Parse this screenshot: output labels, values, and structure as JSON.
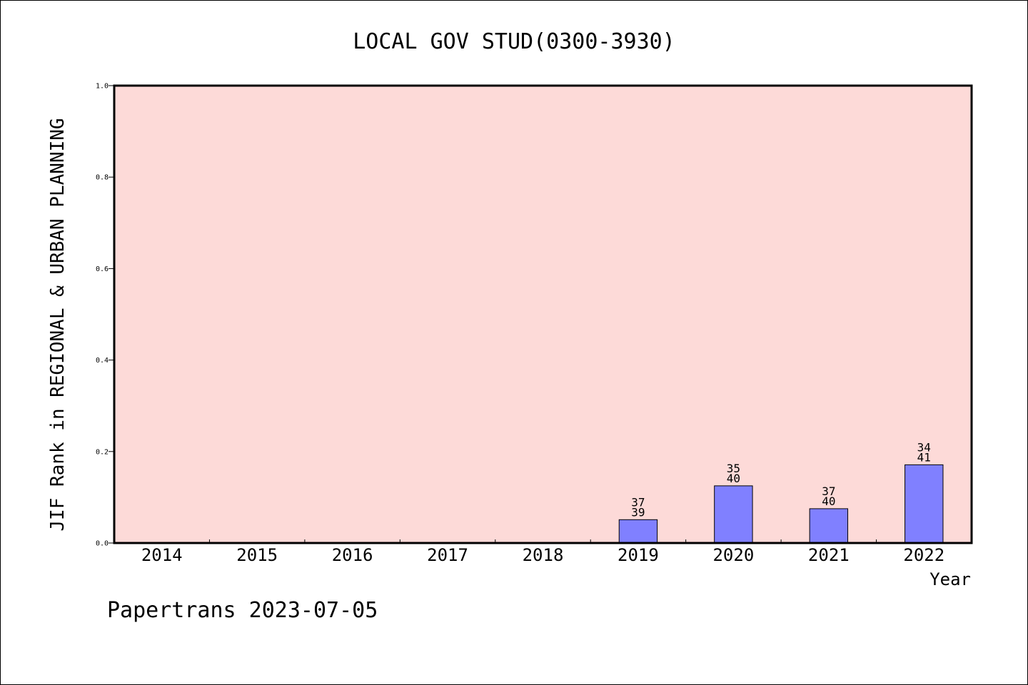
{
  "chart_data": {
    "type": "bar",
    "title": "LOCAL GOV STUD(0300-3930)",
    "xlabel": "Year",
    "ylabel": "JIF Rank in REGIONAL & URBAN PLANNING",
    "ylim": [
      0,
      1.0
    ],
    "yticks": [
      "0.0",
      "0.2",
      "0.4",
      "0.6",
      "0.8",
      "1.0"
    ],
    "categories": [
      "2014",
      "2015",
      "2016",
      "2017",
      "2018",
      "2019",
      "2020",
      "2021",
      "2022"
    ],
    "values": [
      null,
      null,
      null,
      null,
      null,
      0.051,
      0.125,
      0.075,
      0.171
    ],
    "labels": [
      null,
      null,
      null,
      null,
      null,
      {
        "rank": "37",
        "total": "39"
      },
      {
        "rank": "35",
        "total": "40"
      },
      {
        "rank": "37",
        "total": "40"
      },
      {
        "rank": "34",
        "total": "41"
      }
    ],
    "grid": false,
    "colors": {
      "plot_background": "#FDDAD8",
      "bar_fill": "#8080FF",
      "bar_stroke": "#000000"
    }
  },
  "footer": {
    "text": "Papertrans 2023-07-05"
  }
}
